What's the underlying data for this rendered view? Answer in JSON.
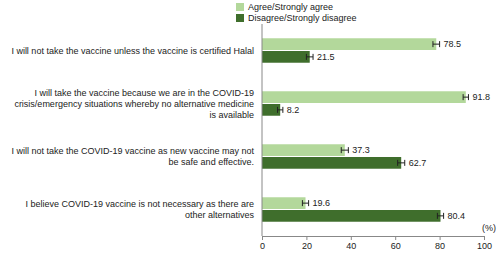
{
  "chart_data": {
    "type": "bar",
    "orientation": "horizontal",
    "categories": [
      "I will not take the vaccine unless the vaccine is certified Halal",
      "I will take the vaccine because we are in the COVID-19 crisis/emergency situations whereby no alternative medicine is available",
      "I will not take the COVID-19 vaccine as new vaccine may not be safe and effective.",
      "I believe COVID-19 vaccine is not necessary as there are other alternatives"
    ],
    "series": [
      {
        "name": "Agree/Strongly agree",
        "color": "#b3d89b",
        "values": [
          78.5,
          91.8,
          37.3,
          19.6
        ],
        "errors": [
          1.5,
          1.2,
          1.6,
          1.4
        ]
      },
      {
        "name": "Disagree/Strongly disagree",
        "color": "#3f6e2c",
        "values": [
          21.5,
          8.2,
          62.7,
          80.4
        ],
        "errors": [
          1.5,
          1.2,
          1.6,
          1.4
        ]
      }
    ],
    "x_label": "(%)",
    "xlim": [
      0,
      100
    ],
    "xticks": [
      0,
      20,
      40,
      60,
      80,
      100
    ],
    "legend": "top",
    "data_labels": true
  }
}
